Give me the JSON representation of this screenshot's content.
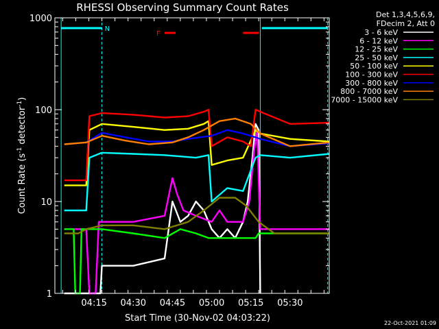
{
  "chart_data": {
    "type": "line",
    "title": "RHESSI Observing Summary Count Rates",
    "xlabel": "Start Time (30-Nov-02 04:03:22)",
    "ylabel_main": "Count Rate (s",
    "ylabel_sup1": "-1",
    "ylabel_mid": " detector",
    "ylabel_sup2": "-1",
    "ylabel_end": ")",
    "x_range_min": [
      4.0,
      5.75
    ],
    "y_scale": "log",
    "ylim": [
      1,
      1000
    ],
    "x_ticks": [
      {
        "t": 4.25,
        "label": "04:15"
      },
      {
        "t": 4.5,
        "label": "04:30"
      },
      {
        "t": 4.75,
        "label": "04:45"
      },
      {
        "t": 5.0,
        "label": "05:00"
      },
      {
        "t": 5.25,
        "label": "05:15"
      },
      {
        "t": 5.5,
        "label": "05:30"
      }
    ],
    "y_ticks": [
      {
        "v": 1,
        "label": "1"
      },
      {
        "v": 10,
        "label": "10"
      },
      {
        "v": 100,
        "label": "100"
      },
      {
        "v": 1000,
        "label": "1000"
      }
    ],
    "legend": {
      "header1": "Det 1,3,4,5,6,9,",
      "header2": "FDecim 2, Att 0",
      "position": "right"
    },
    "series": [
      {
        "name": "3 - 6 keV",
        "color": "#ffffff",
        "points": [
          [
            4.06,
            1
          ],
          [
            4.29,
            1
          ],
          [
            4.3,
            2
          ],
          [
            4.5,
            2
          ],
          [
            4.7,
            2.4
          ],
          [
            4.75,
            10
          ],
          [
            4.8,
            6
          ],
          [
            4.85,
            7
          ],
          [
            4.9,
            10
          ],
          [
            4.95,
            8
          ],
          [
            5.0,
            5
          ],
          [
            5.05,
            4
          ],
          [
            5.1,
            5
          ],
          [
            5.15,
            4
          ],
          [
            5.2,
            6
          ],
          [
            5.23,
            10
          ],
          [
            5.26,
            30
          ],
          [
            5.28,
            70
          ],
          [
            5.3,
            60
          ],
          [
            5.31,
            1
          ]
        ]
      },
      {
        "name": "6 - 12 keV",
        "color": "#ff00ff",
        "points": [
          [
            4.06,
            5
          ],
          [
            4.2,
            5
          ],
          [
            4.22,
            1
          ],
          [
            4.26,
            1
          ],
          [
            4.28,
            6
          ],
          [
            4.5,
            6
          ],
          [
            4.7,
            7
          ],
          [
            4.75,
            18
          ],
          [
            4.78,
            12
          ],
          [
            4.82,
            8
          ],
          [
            4.9,
            7
          ],
          [
            5.0,
            6
          ],
          [
            5.05,
            8
          ],
          [
            5.1,
            6
          ],
          [
            5.2,
            6
          ],
          [
            5.24,
            10
          ],
          [
            5.27,
            35
          ],
          [
            5.29,
            60
          ],
          [
            5.31,
            5
          ],
          [
            5.75,
            5
          ]
        ]
      },
      {
        "name": "12 - 25 keV",
        "color": "#00ff00",
        "points": [
          [
            4.06,
            5
          ],
          [
            4.12,
            5
          ],
          [
            4.13,
            1
          ],
          [
            4.16,
            1
          ],
          [
            4.17,
            5
          ],
          [
            4.3,
            5
          ],
          [
            4.5,
            4.5
          ],
          [
            4.7,
            4
          ],
          [
            4.8,
            5
          ],
          [
            4.9,
            4.5
          ],
          [
            4.98,
            4
          ],
          [
            5.0,
            4
          ],
          [
            5.1,
            4
          ],
          [
            5.2,
            4
          ],
          [
            5.28,
            4
          ],
          [
            5.3,
            4.5
          ],
          [
            5.5,
            4.5
          ],
          [
            5.75,
            4.5
          ]
        ]
      },
      {
        "name": "25 - 50 keV",
        "color": "#00ffff",
        "points": [
          [
            4.06,
            8
          ],
          [
            4.2,
            8
          ],
          [
            4.22,
            30
          ],
          [
            4.3,
            34
          ],
          [
            4.5,
            33
          ],
          [
            4.7,
            32
          ],
          [
            4.9,
            30
          ],
          [
            4.98,
            32
          ],
          [
            5.0,
            10
          ],
          [
            5.1,
            14
          ],
          [
            5.2,
            13
          ],
          [
            5.28,
            30
          ],
          [
            5.31,
            32
          ],
          [
            5.5,
            30
          ],
          [
            5.75,
            33
          ]
        ]
      },
      {
        "name": "50 - 100 keV",
        "color": "#ffff00",
        "points": [
          [
            4.06,
            15
          ],
          [
            4.2,
            15
          ],
          [
            4.22,
            60
          ],
          [
            4.3,
            70
          ],
          [
            4.5,
            65
          ],
          [
            4.7,
            60
          ],
          [
            4.85,
            62
          ],
          [
            4.95,
            70
          ],
          [
            4.98,
            75
          ],
          [
            5.0,
            25
          ],
          [
            5.1,
            28
          ],
          [
            5.2,
            30
          ],
          [
            5.28,
            60
          ],
          [
            5.31,
            55
          ],
          [
            5.5,
            48
          ],
          [
            5.75,
            45
          ]
        ]
      },
      {
        "name": "100 - 300 keV",
        "color": "#ff0000",
        "points": [
          [
            4.06,
            17
          ],
          [
            4.2,
            17
          ],
          [
            4.22,
            85
          ],
          [
            4.3,
            92
          ],
          [
            4.5,
            88
          ],
          [
            4.7,
            82
          ],
          [
            4.85,
            85
          ],
          [
            4.95,
            95
          ],
          [
            4.98,
            100
          ],
          [
            5.0,
            40
          ],
          [
            5.1,
            50
          ],
          [
            5.2,
            45
          ],
          [
            5.25,
            40
          ],
          [
            5.28,
            100
          ],
          [
            5.31,
            95
          ],
          [
            5.5,
            70
          ],
          [
            5.75,
            72
          ]
        ]
      },
      {
        "name": "300 - 800 keV",
        "color": "#0000ff",
        "points": [
          [
            4.06,
            42
          ],
          [
            4.2,
            44
          ],
          [
            4.3,
            56
          ],
          [
            4.45,
            50
          ],
          [
            4.6,
            45
          ],
          [
            4.75,
            45
          ],
          [
            4.85,
            48
          ],
          [
            5.0,
            52
          ],
          [
            5.1,
            60
          ],
          [
            5.2,
            55
          ],
          [
            5.28,
            50
          ],
          [
            5.31,
            48
          ],
          [
            5.5,
            40
          ],
          [
            5.75,
            43
          ]
        ]
      },
      {
        "name": "800 - 7000 keV",
        "color": "#ff8000",
        "points": [
          [
            4.06,
            42
          ],
          [
            4.2,
            44
          ],
          [
            4.3,
            52
          ],
          [
            4.45,
            46
          ],
          [
            4.6,
            42
          ],
          [
            4.75,
            44
          ],
          [
            4.85,
            50
          ],
          [
            4.95,
            60
          ],
          [
            5.05,
            75
          ],
          [
            5.15,
            80
          ],
          [
            5.25,
            70
          ],
          [
            5.31,
            55
          ],
          [
            5.5,
            40
          ],
          [
            5.75,
            44
          ]
        ]
      },
      {
        "name": "7000 - 15000 keV",
        "color": "#808000",
        "points": [
          [
            4.06,
            4.5
          ],
          [
            4.15,
            4.5
          ],
          [
            4.2,
            5
          ],
          [
            4.3,
            5.5
          ],
          [
            4.5,
            5.5
          ],
          [
            4.7,
            5
          ],
          [
            4.85,
            6
          ],
          [
            4.95,
            8
          ],
          [
            5.05,
            11
          ],
          [
            5.15,
            11
          ],
          [
            5.22,
            9
          ],
          [
            5.3,
            6
          ],
          [
            5.4,
            4.5
          ],
          [
            5.75,
            4.5
          ]
        ]
      }
    ],
    "annotations": {
      "night_label": "N",
      "flare_label": "F",
      "night_intervals": [
        [
          4.04,
          4.3
        ],
        [
          5.32,
          5.74
        ]
      ],
      "flare_intervals": [
        [
          4.7,
          4.77
        ],
        [
          5.2,
          5.3
        ]
      ],
      "divider_times": [
        4.04,
        4.3,
        5.31,
        5.74
      ]
    },
    "timestamp": "22-Oct-2021 01:09"
  }
}
